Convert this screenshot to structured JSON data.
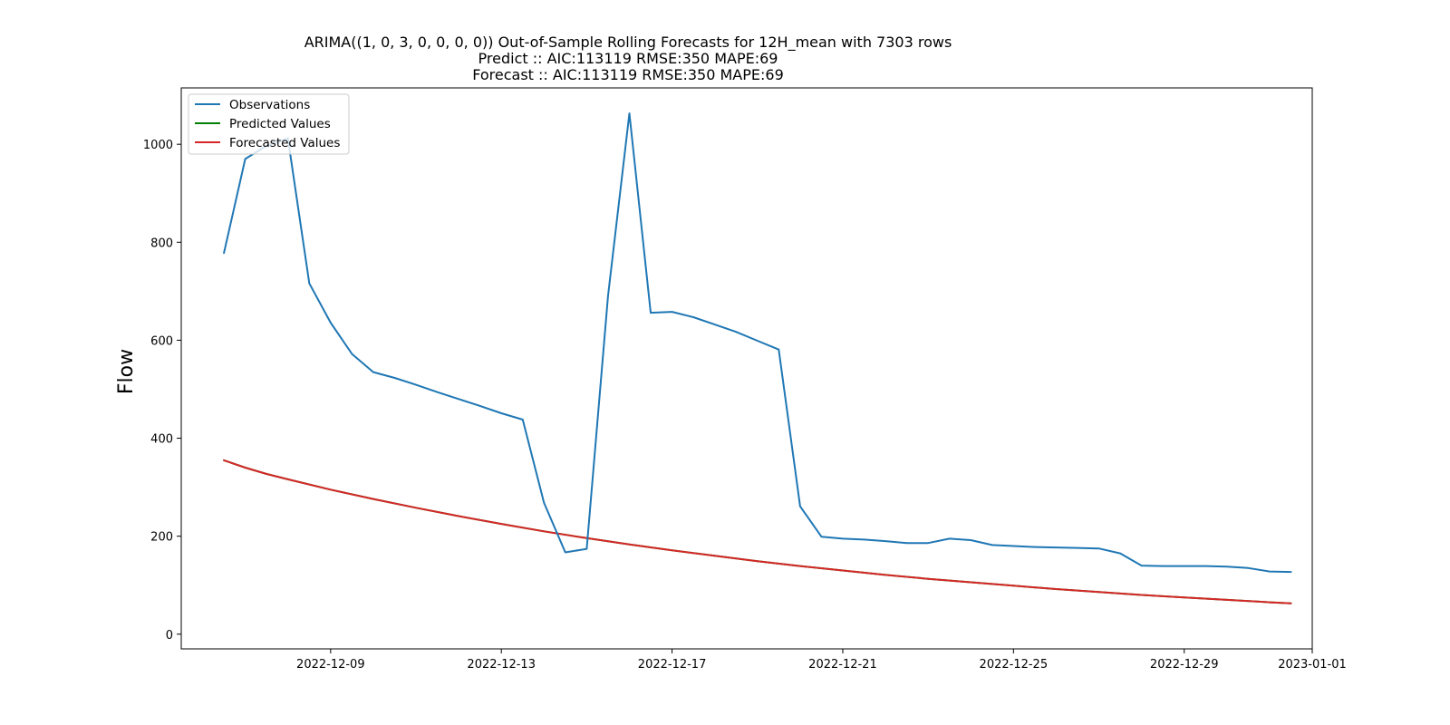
{
  "chart_data": {
    "type": "line",
    "title_lines": [
      "ARIMA((1, 0, 3, 0, 0, 0, 0)) Out-of-Sample Rolling Forecasts for 12H_mean with 7303 rows",
      "Predict :: AIC:113119 RMSE:350 MAPE:69",
      "Forecast :: AIC:113119 RMSE:350 MAPE:69"
    ],
    "xlabel": "",
    "ylabel": "Flow",
    "x_tick_labels": [
      "2022-12-09",
      "2022-12-13",
      "2022-12-17",
      "2022-12-21",
      "2022-12-25",
      "2022-12-29",
      "2023-01-01"
    ],
    "x_ticks_date": [
      "2022-12-09",
      "2022-12-13",
      "2022-12-17",
      "2022-12-21",
      "2022-12-25",
      "2022-12-29",
      "2023-01-01"
    ],
    "y_ticks": [
      0,
      200,
      400,
      600,
      800,
      1000
    ],
    "xlim": [
      "2022-12-05T12:00",
      "2023-01-01T00:00"
    ],
    "ylim": [
      -30,
      1115
    ],
    "legend_position": "upper-left",
    "series": [
      {
        "name": "Observations",
        "color": "#1f77b4",
        "x": [
          "2022-12-06T12:00",
          "2022-12-07T00:00",
          "2022-12-07T12:00",
          "2022-12-08T00:00",
          "2022-12-08T12:00",
          "2022-12-09T00:00",
          "2022-12-09T12:00",
          "2022-12-10T00:00",
          "2022-12-10T12:00",
          "2022-12-11T00:00",
          "2022-12-11T12:00",
          "2022-12-12T00:00",
          "2022-12-12T12:00",
          "2022-12-13T00:00",
          "2022-12-13T12:00",
          "2022-12-14T00:00",
          "2022-12-14T12:00",
          "2022-12-15T00:00",
          "2022-12-15T12:00",
          "2022-12-16T00:00",
          "2022-12-16T12:00",
          "2022-12-17T00:00",
          "2022-12-17T12:00",
          "2022-12-18T00:00",
          "2022-12-18T12:00",
          "2022-12-19T00:00",
          "2022-12-19T12:00",
          "2022-12-20T00:00",
          "2022-12-20T12:00",
          "2022-12-21T00:00",
          "2022-12-21T12:00",
          "2022-12-22T00:00",
          "2022-12-22T12:00",
          "2022-12-23T00:00",
          "2022-12-23T12:00",
          "2022-12-24T00:00",
          "2022-12-24T12:00",
          "2022-12-25T00:00",
          "2022-12-25T12:00",
          "2022-12-26T00:00",
          "2022-12-26T12:00",
          "2022-12-27T00:00",
          "2022-12-27T12:00",
          "2022-12-28T00:00",
          "2022-12-28T12:00",
          "2022-12-29T00:00",
          "2022-12-29T12:00",
          "2022-12-30T00:00",
          "2022-12-30T12:00",
          "2022-12-31T00:00",
          "2022-12-31T12:00"
        ],
        "values": [
          778,
          970,
          997,
          1012,
          716,
          636,
          572,
          535,
          523,
          509,
          494,
          480,
          466,
          451,
          438,
          268,
          167,
          174,
          690,
          1063,
          656,
          658,
          647,
          632,
          617,
          599,
          581,
          261,
          199,
          195,
          193,
          190,
          186,
          186,
          195,
          192,
          182,
          180,
          178,
          177,
          176,
          175,
          165,
          140,
          139,
          139,
          139,
          138,
          135,
          128,
          127
        ]
      },
      {
        "name": "Predicted Values",
        "color": "#008000",
        "x": [
          "2022-12-06T12:00",
          "2022-12-07T00:00",
          "2022-12-07T12:00",
          "2022-12-08T00:00",
          "2022-12-09T00:00",
          "2022-12-10T00:00",
          "2022-12-11T00:00",
          "2022-12-12T00:00",
          "2022-12-13T00:00",
          "2022-12-14T00:00",
          "2022-12-15T00:00",
          "2022-12-16T00:00",
          "2022-12-17T00:00",
          "2022-12-18T00:00",
          "2022-12-19T00:00",
          "2022-12-20T00:00",
          "2022-12-21T00:00",
          "2022-12-22T00:00",
          "2022-12-23T00:00",
          "2022-12-24T00:00",
          "2022-12-25T00:00",
          "2022-12-26T00:00",
          "2022-12-27T00:00",
          "2022-12-28T00:00",
          "2022-12-29T00:00",
          "2022-12-30T00:00",
          "2022-12-31T00:00",
          "2022-12-31T12:00"
        ],
        "values": [
          355,
          340,
          327,
          316,
          295,
          276,
          258,
          241,
          225,
          210,
          196,
          183,
          171,
          160,
          149,
          139,
          130,
          121,
          113,
          106,
          99,
          92,
          86,
          80,
          75,
          70,
          65,
          63
        ]
      },
      {
        "name": "Forecasted Values",
        "color": "#d62728",
        "x": [
          "2022-12-06T12:00",
          "2022-12-07T00:00",
          "2022-12-07T12:00",
          "2022-12-08T00:00",
          "2022-12-09T00:00",
          "2022-12-10T00:00",
          "2022-12-11T00:00",
          "2022-12-12T00:00",
          "2022-12-13T00:00",
          "2022-12-14T00:00",
          "2022-12-15T00:00",
          "2022-12-16T00:00",
          "2022-12-17T00:00",
          "2022-12-18T00:00",
          "2022-12-19T00:00",
          "2022-12-20T00:00",
          "2022-12-21T00:00",
          "2022-12-22T00:00",
          "2022-12-23T00:00",
          "2022-12-24T00:00",
          "2022-12-25T00:00",
          "2022-12-26T00:00",
          "2022-12-27T00:00",
          "2022-12-28T00:00",
          "2022-12-29T00:00",
          "2022-12-30T00:00",
          "2022-12-31T00:00",
          "2022-12-31T12:00"
        ],
        "values": [
          355,
          340,
          327,
          316,
          295,
          276,
          258,
          241,
          225,
          210,
          196,
          183,
          171,
          160,
          149,
          139,
          130,
          121,
          113,
          106,
          99,
          92,
          86,
          80,
          75,
          70,
          65,
          63
        ]
      }
    ]
  }
}
